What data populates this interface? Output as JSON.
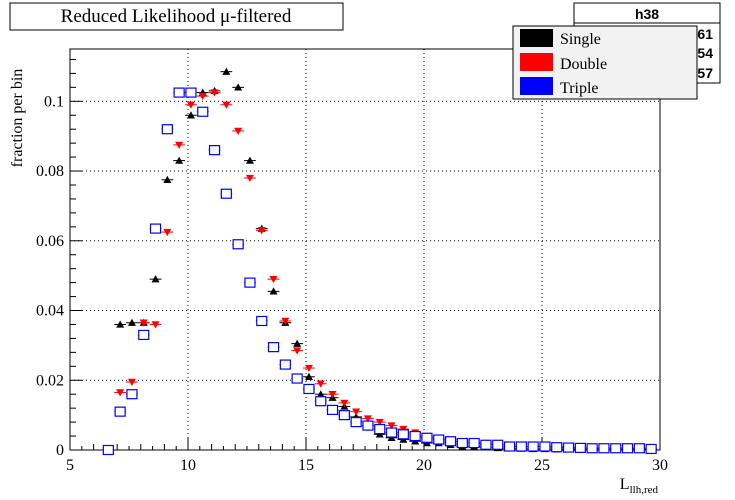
{
  "title": "Reduced Likelihood μ-filtered",
  "stats_box": {
    "name": "h38",
    "visible_fragments": [
      "61",
      "54",
      "57"
    ]
  },
  "chart_data": {
    "type": "scatter",
    "xlabel": "L",
    "xlabel_sub": "llh,red",
    "ylabel": "fraction per bin",
    "xlim": [
      5,
      30
    ],
    "ylim": [
      0,
      0.115
    ],
    "x_ticks": [
      5,
      10,
      15,
      20,
      25,
      30
    ],
    "x_tick_labels": [
      "5",
      "10",
      "15",
      "20",
      "25",
      "30"
    ],
    "y_ticks": [
      0,
      0.02,
      0.04,
      0.06,
      0.08,
      0.1
    ],
    "y_tick_labels": [
      "0",
      "0.02",
      "0.04",
      "0.06",
      "0.08",
      "0.1"
    ],
    "grid": true,
    "legend_position": "top-right",
    "series": [
      {
        "name": "Single",
        "color": "#000000",
        "marker": "triangle-up",
        "x": [
          6.625,
          7.125,
          7.625,
          8.125,
          8.625,
          9.125,
          9.625,
          10.125,
          10.625,
          11.125,
          11.625,
          12.125,
          12.625,
          13.125,
          13.625,
          14.125,
          14.625,
          15.125,
          15.625,
          16.125,
          16.625,
          17.125,
          17.625,
          18.125,
          18.625,
          19.125,
          19.625,
          20.125,
          20.625,
          21.125,
          21.625,
          22.125,
          22.625,
          23.125,
          23.625,
          24.125,
          24.625,
          25.125,
          25.625,
          26.125,
          26.625,
          27.125,
          27.625,
          28.125,
          28.625,
          29.125,
          29.625
        ],
        "y": [
          0.0,
          0.036,
          0.0365,
          0.0365,
          0.049,
          0.0775,
          0.083,
          0.096,
          0.1025,
          0.103,
          0.1085,
          0.104,
          0.083,
          0.0635,
          0.0455,
          0.0365,
          0.0305,
          0.021,
          0.016,
          0.015,
          0.0125,
          0.0095,
          0.007,
          0.0045,
          0.0035,
          0.003,
          0.0025,
          0.002,
          0.002,
          0.0015,
          0.001,
          0.001,
          0.0008,
          0.0006,
          0.0005,
          0.0004,
          0.0003,
          0.0003,
          0.0002,
          0.0002,
          0.0001,
          0.0001,
          0.0001,
          0.0001,
          0.0001,
          0.0001,
          0.0001
        ]
      },
      {
        "name": "Double",
        "color": "#ff0000",
        "marker": "triangle-down",
        "x": [
          6.625,
          7.125,
          7.625,
          8.125,
          8.625,
          9.125,
          9.625,
          10.125,
          10.625,
          11.125,
          11.625,
          12.125,
          12.625,
          13.125,
          13.625,
          14.125,
          14.625,
          15.125,
          15.625,
          16.125,
          16.625,
          17.125,
          17.625,
          18.125,
          18.625,
          19.125,
          19.625,
          20.125,
          20.625,
          21.125,
          21.625,
          22.125,
          22.625,
          23.125,
          23.625,
          24.125,
          24.625,
          25.125,
          25.625,
          26.125,
          26.625,
          27.125,
          27.625,
          28.125,
          28.625,
          29.125,
          29.625
        ],
        "y": [
          0.0,
          0.0165,
          0.0195,
          0.0365,
          0.036,
          0.0625,
          0.0875,
          0.099,
          0.1015,
          0.1025,
          0.099,
          0.0915,
          0.078,
          0.063,
          0.049,
          0.037,
          0.0285,
          0.0235,
          0.019,
          0.016,
          0.0135,
          0.011,
          0.009,
          0.008,
          0.007,
          0.006,
          0.005,
          0.004,
          0.0035,
          0.003,
          0.0025,
          0.002,
          0.002,
          0.0015,
          0.0015,
          0.001,
          0.001,
          0.001,
          0.001,
          0.0005,
          0.0005,
          0.0005,
          0.0005,
          0.0005,
          0.0005,
          0.0005,
          0.0003
        ]
      },
      {
        "name": "Triple",
        "color": "#0000ff",
        "marker": "open-square",
        "x": [
          6.625,
          7.125,
          7.625,
          8.125,
          8.625,
          9.125,
          9.625,
          10.125,
          10.625,
          11.125,
          11.625,
          12.125,
          12.625,
          13.125,
          13.625,
          14.125,
          14.625,
          15.125,
          15.625,
          16.125,
          16.625,
          17.125,
          17.625,
          18.125,
          18.625,
          19.125,
          19.625,
          20.125,
          20.625,
          21.125,
          21.625,
          22.125,
          22.625,
          23.125,
          23.625,
          24.125,
          24.625,
          25.125,
          25.625,
          26.125,
          26.625,
          27.125,
          27.625,
          28.125,
          28.625,
          29.125,
          29.625
        ],
        "y": [
          0.0,
          0.011,
          0.016,
          0.033,
          0.0635,
          0.092,
          0.1025,
          0.1025,
          0.097,
          0.086,
          0.0735,
          0.059,
          0.048,
          0.037,
          0.0295,
          0.0245,
          0.0205,
          0.0175,
          0.014,
          0.0115,
          0.01,
          0.008,
          0.007,
          0.006,
          0.005,
          0.0045,
          0.004,
          0.0035,
          0.003,
          0.0025,
          0.002,
          0.002,
          0.0015,
          0.0015,
          0.001,
          0.001,
          0.001,
          0.001,
          0.0008,
          0.0007,
          0.0006,
          0.0005,
          0.0005,
          0.0005,
          0.0005,
          0.0005,
          0.0003
        ]
      }
    ]
  }
}
